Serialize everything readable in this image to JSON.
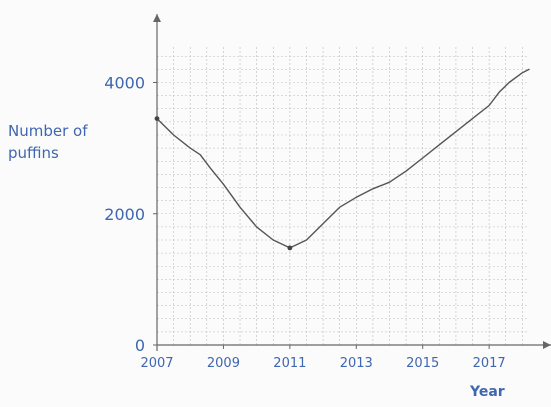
{
  "chart_data": {
    "type": "line",
    "xlabel": "Year",
    "ylabel": "Number of puffins",
    "xlim": [
      2007,
      2018.2
    ],
    "ylim": [
      0,
      4800
    ],
    "x_ticks": [
      2007,
      2009,
      2011,
      2013,
      2015,
      2017
    ],
    "y_ticks": [
      0,
      2000,
      4000
    ],
    "grid": true,
    "colors": {
      "axis_labels": "#3f66b0",
      "line": "#555555",
      "grid": "#bbbbbb"
    },
    "series": [
      {
        "x": [
          2007,
          2007.5,
          2008,
          2008.3,
          2008.6,
          2009,
          2009.5,
          2010,
          2010.5,
          2011,
          2011.5,
          2012,
          2012.5,
          2013,
          2013.5,
          2014,
          2014.5,
          2015,
          2015.5,
          2016,
          2016.5,
          2017,
          2017.3,
          2017.6,
          2018,
          2018.2
        ],
        "y": [
          3450,
          3200,
          3000,
          2900,
          2700,
          2450,
          2100,
          1800,
          1600,
          1480,
          1600,
          1850,
          2100,
          2250,
          2380,
          2480,
          2650,
          2850,
          3050,
          3250,
          3450,
          3650,
          3850,
          4000,
          4150,
          4200
        ]
      }
    ],
    "markers": [
      {
        "x": 2007,
        "y": 3450
      },
      {
        "x": 2011,
        "y": 1480
      }
    ]
  }
}
